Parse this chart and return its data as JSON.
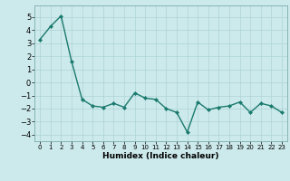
{
  "x": [
    0,
    1,
    2,
    3,
    4,
    5,
    6,
    7,
    8,
    9,
    10,
    11,
    12,
    13,
    14,
    15,
    16,
    17,
    18,
    19,
    20,
    21,
    22,
    23
  ],
  "y": [
    3.3,
    4.3,
    5.1,
    1.6,
    -1.3,
    -1.8,
    -1.9,
    -1.6,
    -1.9,
    -0.8,
    -1.2,
    -1.3,
    -2.0,
    -2.3,
    -3.8,
    -1.5,
    -2.1,
    -1.9,
    -1.8,
    -1.5,
    -2.3,
    -1.6,
    -1.8,
    -2.3
  ],
  "line_color": "#1a7a6e",
  "marker": "D",
  "marker_size": 2.0,
  "bg_color": "#cce9eb",
  "grid_color": "#aed4d6",
  "xlabel": "Humidex (Indice chaleur)",
  "xlim": [
    -0.5,
    23.5
  ],
  "ylim": [
    -4.5,
    5.9
  ],
  "yticks": [
    -4,
    -3,
    -2,
    -1,
    0,
    1,
    2,
    3,
    4,
    5
  ],
  "xticks": [
    0,
    1,
    2,
    3,
    4,
    5,
    6,
    7,
    8,
    9,
    10,
    11,
    12,
    13,
    14,
    15,
    16,
    17,
    18,
    19,
    20,
    21,
    22,
    23
  ],
  "xlabel_fontsize": 6.5,
  "tick_fontsize_y": 6.0,
  "tick_fontsize_x": 5.0,
  "line_width": 1.0
}
